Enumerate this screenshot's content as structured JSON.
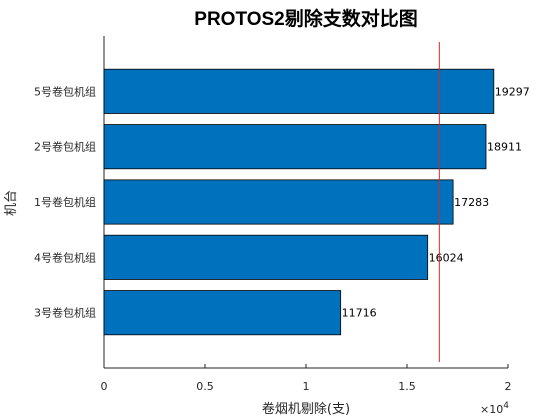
{
  "chart_data": {
    "type": "bar",
    "orientation": "horizontal",
    "title": "PROTOS2剔除支数对比图",
    "xlabel": "卷烟机剔除(支)",
    "ylabel": "机台",
    "categories": [
      "3号卷包机组",
      "4号卷包机组",
      "1号卷包机组",
      "2号卷包机组",
      "5号卷包机组"
    ],
    "values": [
      11716,
      16024,
      17283,
      18911,
      19297
    ],
    "xlim": [
      0,
      20000
    ],
    "xticks": [
      0,
      0.5,
      1,
      1.5,
      2
    ],
    "xtick_labels": [
      "0",
      "0.5",
      "1",
      "1.5",
      "2"
    ],
    "x_exponent_label": "×10",
    "x_exponent_power": "4",
    "reference_line_x": 16600,
    "bar_color": "#0072BD",
    "reference_line_color": "#D62728",
    "grid": false
  }
}
